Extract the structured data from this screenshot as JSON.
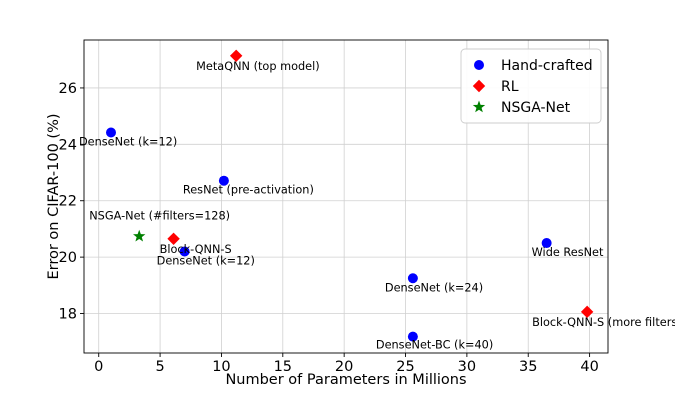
{
  "chart_data": {
    "type": "scatter",
    "title": "",
    "xlabel": "Number of Parameters in Millions",
    "ylabel": "Error on CIFAR-100 (%)",
    "xlim": [
      -1.2,
      41.5
    ],
    "ylim": [
      16.6,
      27.7
    ],
    "xticks": [
      0,
      5,
      10,
      15,
      20,
      25,
      30,
      35,
      40
    ],
    "yticks": [
      18,
      20,
      22,
      24,
      26
    ],
    "grid": true,
    "legend_position": "top-right",
    "series": [
      {
        "name": "Hand-crafted",
        "marker": "circle",
        "color": "#0000ff",
        "points": [
          {
            "x": 1.0,
            "y": 24.42,
            "label": "DenseNet (k=12)"
          },
          {
            "x": 10.2,
            "y": 22.71,
            "label": "ResNet (pre-activation)"
          },
          {
            "x": 7.0,
            "y": 20.2,
            "label": "DenseNet (k=12)"
          },
          {
            "x": 25.6,
            "y": 19.25,
            "label": "DenseNet (k=24)"
          },
          {
            "x": 36.5,
            "y": 20.5,
            "label": "Wide ResNet"
          },
          {
            "x": 25.6,
            "y": 17.18,
            "label": "DenseNet-BC (k=40)"
          }
        ]
      },
      {
        "name": "RL",
        "marker": "diamond",
        "color": "#ff0000",
        "points": [
          {
            "x": 11.2,
            "y": 27.14,
            "label": "MetaQNN (top model)"
          },
          {
            "x": 6.1,
            "y": 20.65,
            "label": "Block-QNN-S"
          },
          {
            "x": 39.8,
            "y": 18.06,
            "label": "Block-QNN-S (more filters"
          }
        ]
      },
      {
        "name": "NSGA-Net",
        "marker": "star",
        "color": "#008000",
        "points": [
          {
            "x": 3.3,
            "y": 20.74,
            "label": "NSGA-Net (#filters=128)"
          }
        ]
      }
    ]
  }
}
